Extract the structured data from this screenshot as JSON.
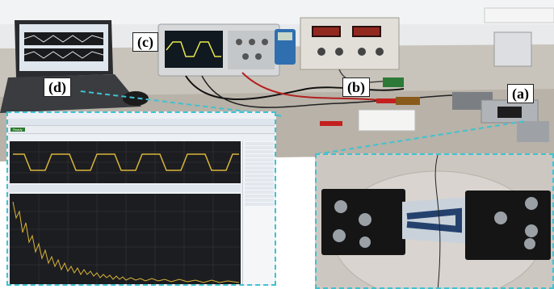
{
  "labels": {
    "a": "(a)",
    "b": "(b)",
    "c": "(c)",
    "d": "(d)"
  },
  "scope_software": {
    "run_state": "Ready"
  },
  "colors": {
    "callout": "#3fc2d1",
    "trace": "#d9b53a",
    "plot_bg": "#1c1d20"
  }
}
